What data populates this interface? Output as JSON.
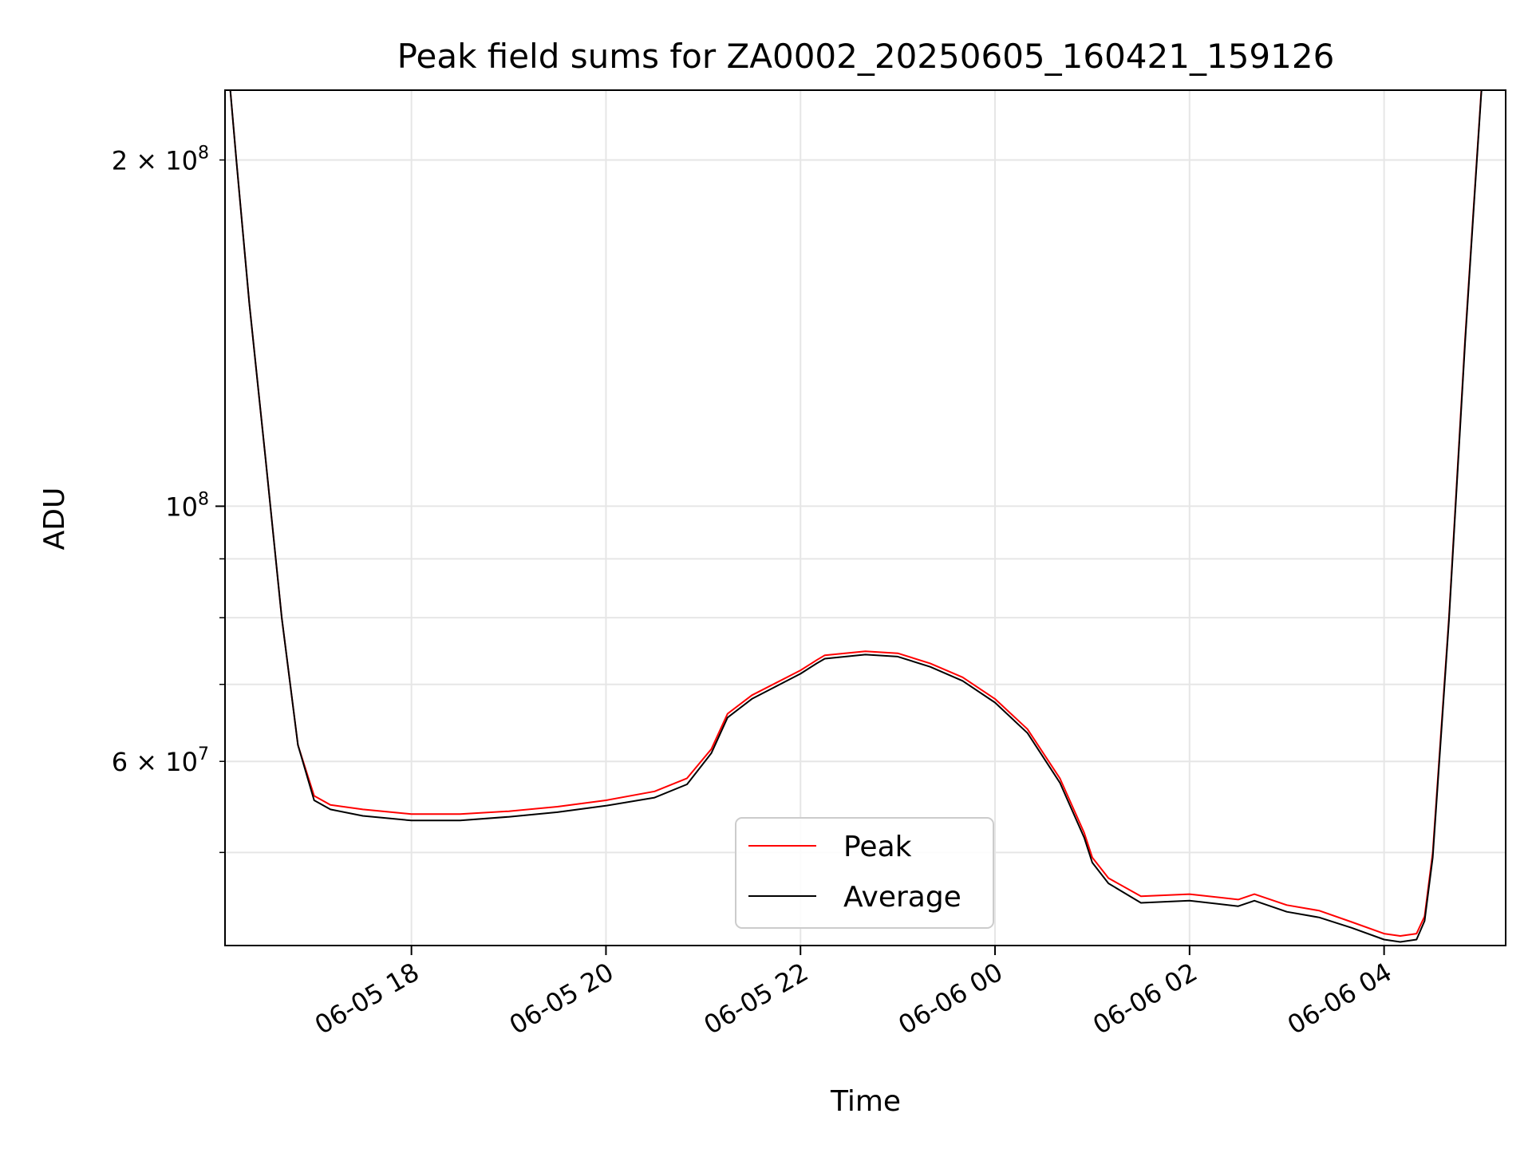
{
  "chart_data": {
    "type": "line",
    "title": "Peak field sums for ZA0002_20250605_160421_159126",
    "xlabel": "Time",
    "ylabel": "ADU",
    "x_axis": {
      "kind": "datetime",
      "range": [
        "2025-06-05T16:05",
        "2025-06-06T05:15"
      ],
      "ticks": [
        "2025-06-05T18:00",
        "2025-06-05T20:00",
        "2025-06-05T22:00",
        "2025-06-06T00:00",
        "2025-06-06T02:00",
        "2025-06-06T04:00"
      ],
      "tick_labels": [
        "06-05 18",
        "06-05 20",
        "06-05 22",
        "06-06 00",
        "06-06 02",
        "06-06 04"
      ],
      "tick_label_rotation": 30
    },
    "y_axis": {
      "scale": "log",
      "range": [
        41500000,
        230000000
      ],
      "major_ticks": [
        100000000
      ],
      "major_tick_labels": [
        "10^8"
      ],
      "labeled_minor_ticks": [
        60000000,
        200000000
      ],
      "labeled_minor_tick_labels": [
        "6 × 10^7",
        "2 × 10^8"
      ],
      "unlabeled_minor_ticks": [
        50000000,
        70000000,
        80000000,
        90000000
      ]
    },
    "grid": true,
    "legend": {
      "placement": "lower-center",
      "entries": [
        "Peak",
        "Average"
      ]
    },
    "series": [
      {
        "name": "Peak",
        "color": "#ff0000",
        "x": [
          "2025-06-05T16:05",
          "2025-06-05T16:12",
          "2025-06-05T16:20",
          "2025-06-05T16:30",
          "2025-06-05T16:40",
          "2025-06-05T16:50",
          "2025-06-05T17:00",
          "2025-06-05T17:10",
          "2025-06-05T17:30",
          "2025-06-05T18:00",
          "2025-06-05T18:30",
          "2025-06-05T19:00",
          "2025-06-05T19:30",
          "2025-06-05T20:00",
          "2025-06-05T20:30",
          "2025-06-05T20:50",
          "2025-06-05T21:05",
          "2025-06-05T21:15",
          "2025-06-05T21:30",
          "2025-06-05T22:00",
          "2025-06-05T22:10",
          "2025-06-05T22:15",
          "2025-06-05T22:40",
          "2025-06-05T23:00",
          "2025-06-05T23:20",
          "2025-06-05T23:40",
          "2025-06-06T00:00",
          "2025-06-06T00:20",
          "2025-06-06T00:40",
          "2025-06-06T00:55",
          "2025-06-06T01:00",
          "2025-06-06T01:10",
          "2025-06-06T01:30",
          "2025-06-06T02:00",
          "2025-06-06T02:30",
          "2025-06-06T02:40",
          "2025-06-06T03:00",
          "2025-06-06T03:20",
          "2025-06-06T03:40",
          "2025-06-06T04:00",
          "2025-06-06T04:10",
          "2025-06-06T04:20",
          "2025-06-06T04:25",
          "2025-06-06T04:30",
          "2025-06-06T04:40",
          "2025-06-06T04:50",
          "2025-06-06T04:55",
          "2025-06-06T05:00",
          "2025-06-06T05:05"
        ],
        "y": [
          260000000,
          200000000,
          150000000,
          110000000,
          80000000,
          62000000,
          56000000,
          55000000,
          54500000,
          54000000,
          54000000,
          54300000,
          54800000,
          55500000,
          56500000,
          58000000,
          61500000,
          66000000,
          68500000,
          72000000,
          73500000,
          74200000,
          74800000,
          74500000,
          73000000,
          71000000,
          68000000,
          64000000,
          58000000,
          52000000,
          49500000,
          47500000,
          45800000,
          46000000,
          45500000,
          46000000,
          45000000,
          44500000,
          43500000,
          42500000,
          42300000,
          42500000,
          44000000,
          50000000,
          80000000,
          140000000,
          180000000,
          230000000,
          260000000
        ]
      },
      {
        "name": "Average",
        "color": "#000000",
        "x": [
          "2025-06-05T16:05",
          "2025-06-05T16:12",
          "2025-06-05T16:20",
          "2025-06-05T16:30",
          "2025-06-05T16:40",
          "2025-06-05T16:50",
          "2025-06-05T17:00",
          "2025-06-05T17:10",
          "2025-06-05T17:30",
          "2025-06-05T18:00",
          "2025-06-05T18:30",
          "2025-06-05T19:00",
          "2025-06-05T19:30",
          "2025-06-05T20:00",
          "2025-06-05T20:30",
          "2025-06-05T20:50",
          "2025-06-05T21:05",
          "2025-06-05T21:15",
          "2025-06-05T21:30",
          "2025-06-05T22:00",
          "2025-06-05T22:10",
          "2025-06-05T22:15",
          "2025-06-05T22:40",
          "2025-06-05T23:00",
          "2025-06-05T23:20",
          "2025-06-05T23:40",
          "2025-06-06T00:00",
          "2025-06-06T00:20",
          "2025-06-06T00:40",
          "2025-06-06T00:55",
          "2025-06-06T01:00",
          "2025-06-06T01:10",
          "2025-06-06T01:30",
          "2025-06-06T02:00",
          "2025-06-06T02:30",
          "2025-06-06T02:40",
          "2025-06-06T03:00",
          "2025-06-06T03:20",
          "2025-06-06T03:40",
          "2025-06-06T04:00",
          "2025-06-06T04:10",
          "2025-06-06T04:20",
          "2025-06-06T04:25",
          "2025-06-06T04:30",
          "2025-06-06T04:40",
          "2025-06-06T04:50",
          "2025-06-06T04:55",
          "2025-06-06T05:00",
          "2025-06-06T05:05"
        ],
        "y": [
          260000000,
          200000000,
          150000000,
          110000000,
          80000000,
          62000000,
          55500000,
          54500000,
          53800000,
          53300000,
          53300000,
          53700000,
          54200000,
          54900000,
          55800000,
          57300000,
          61000000,
          65500000,
          68000000,
          71500000,
          73000000,
          73700000,
          74300000,
          74000000,
          72500000,
          70500000,
          67500000,
          63500000,
          57500000,
          51500000,
          49000000,
          47000000,
          45200000,
          45400000,
          44900000,
          45400000,
          44400000,
          43900000,
          43000000,
          42000000,
          41800000,
          42000000,
          43600000,
          49500000,
          79500000,
          139000000,
          179000000,
          229000000,
          260000000
        ]
      }
    ]
  }
}
